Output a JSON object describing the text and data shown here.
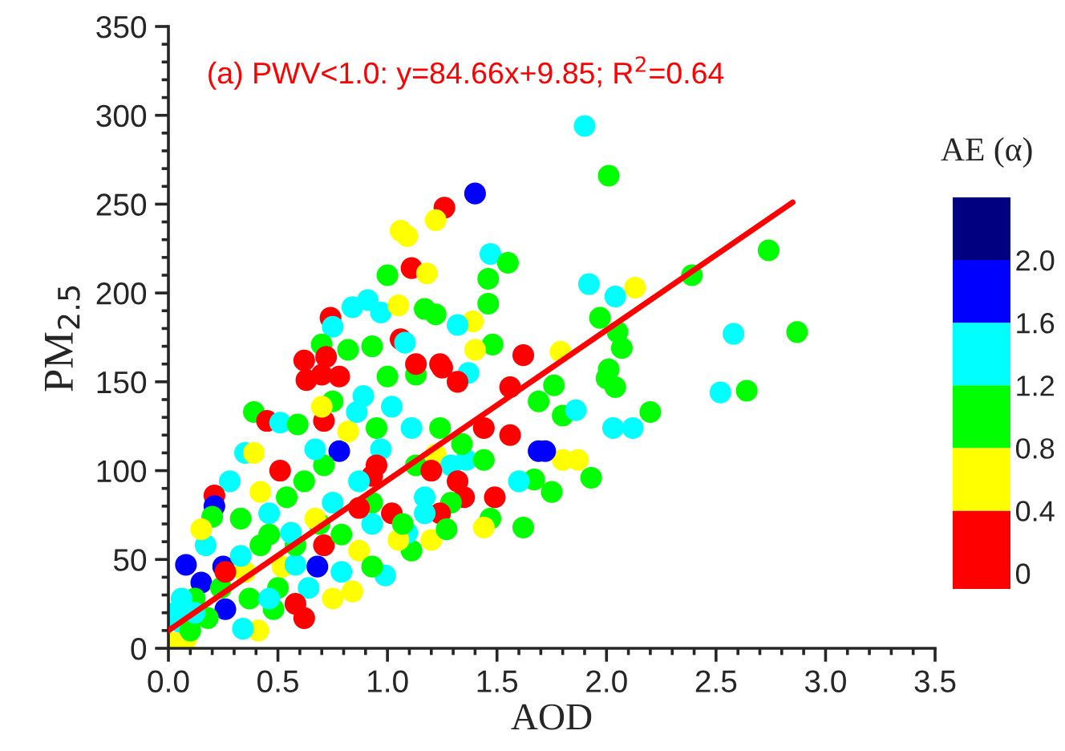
{
  "chart_data": {
    "type": "scatter",
    "xlabel": "AOD",
    "ylabel": "PM$_{2.5}$",
    "clabel": "AE (α)",
    "annotations": [
      "(a) PWV<1.0: y=84.66x+9.85; R$^{2}$=0.64"
    ],
    "xlim": [
      0,
      3.5
    ],
    "xticks": [
      {
        "value": 0,
        "label": "0.0"
      },
      {
        "value": 0.5,
        "label": "0.5"
      },
      {
        "value": 1,
        "label": "1.0"
      },
      {
        "value": 1.5,
        "label": "1.5"
      },
      {
        "value": 2,
        "label": "2.0"
      },
      {
        "value": 2.5,
        "label": "2.5"
      },
      {
        "value": 3,
        "label": "3.0"
      },
      {
        "value": 3.5,
        "label": "3.5"
      }
    ],
    "ylim": [
      0,
      350
    ],
    "yticks": [
      0,
      50,
      100,
      150,
      200,
      250,
      300,
      350
    ],
    "clim": [
      -0.1,
      2.4
    ],
    "cticks": [
      0,
      0.4,
      0.8,
      {
        "value": 1.2,
        "label": "1.2"
      },
      1.6,
      {
        "value": 2.0,
        "label": "2.0"
      }
    ],
    "colors": [
      "#ff0000",
      "#ffff00",
      "#00ff00",
      "#00ffff",
      "#0000ff",
      "#000080"
    ],
    "marker": "circle",
    "grid": false,
    "legend": false,
    "series": [
      {
        "type": "scatter",
        "x": [
          1.9,
          2.01,
          2.74,
          2.39,
          1.92,
          2.13,
          2.04,
          1.97,
          2.05,
          2.07,
          2.58,
          2.87,
          2.01,
          2.0,
          2.04,
          2.52,
          2.64,
          2.2,
          2.03,
          2.12,
          1.79,
          1.76,
          1.8,
          1.86,
          1.8,
          1.87,
          1.93,
          1.75,
          1.72,
          1.4,
          1.26,
          1.22,
          1.06,
          1.09,
          1.47,
          1.55,
          1.11,
          1.18,
          1.0,
          1.46,
          0.91,
          0.84,
          0.97,
          1.05,
          1.46,
          0.74,
          1.17,
          1.22,
          0.75,
          1.39,
          1.32,
          1.06,
          1.08,
          0.93,
          1.48,
          1.62,
          0.7,
          0.62,
          0.72,
          0.82,
          1.24,
          1.4,
          0.63,
          0.7,
          0.78,
          1.13,
          1.13,
          1.25,
          1.37,
          1.32,
          1.0,
          0.89,
          0.39,
          0.45,
          0.51,
          0.59,
          0.35,
          0.39,
          1.56,
          1.69,
          1.44,
          1.56,
          1.69,
          1.67,
          1.6,
          1.62,
          1.47,
          1.44,
          1.35,
          1.49,
          1.29,
          1.17,
          1.2,
          1.11,
          0.99,
          1.09,
          0.84,
          0.62,
          0.75,
          0.64,
          0.48,
          0.68,
          0.25,
          0.08,
          0.15,
          0.26,
          0.08,
          0.41,
          0.34,
          0.18,
          0.03,
          0.5,
          0.52,
          0.58,
          0.42,
          0.42,
          0.28,
          0.21,
          0.21,
          0.2,
          0.17,
          0.15,
          0.33,
          0.46,
          0.54,
          0.78,
          0.71,
          0.67,
          0.71,
          0.82,
          0.86,
          0.75,
          0.7,
          1.02,
          0.95,
          1.11,
          1.24,
          0.97,
          0.93,
          0.95,
          0.87,
          0.93,
          0.87,
          0.93,
          0.79,
          0.58,
          0.56,
          0.46,
          0.35,
          0.33,
          0.24,
          0.26,
          0.12,
          0.06,
          0.37,
          0.46,
          0.58,
          0.69,
          0.71,
          0.75,
          0.67,
          0.62,
          0.51,
          1.13,
          1.22,
          1.29,
          1.2,
          1.36,
          1.34,
          1.32,
          1.05,
          1.24,
          1.27,
          1.17,
          1.44,
          0.93,
          0.87,
          1.02,
          1.07,
          0.79,
          0.05,
          0.1,
          0.02,
          0.12
        ],
        "values": [
          294,
          266,
          224,
          210,
          205,
          203,
          198,
          186,
          178,
          169,
          177,
          178,
          157,
          152,
          147,
          144,
          145,
          133,
          124,
          124,
          167,
          148,
          131,
          134,
          106,
          106,
          96,
          88,
          111,
          256,
          248,
          241,
          235,
          232,
          222,
          217,
          214,
          211,
          210,
          208,
          196,
          192,
          189,
          193,
          194,
          186,
          191,
          188,
          181,
          184,
          182,
          174,
          172,
          170,
          171,
          165,
          171,
          162,
          164,
          168,
          160,
          168,
          151,
          154,
          153,
          154,
          160,
          158,
          155,
          150,
          153,
          142,
          133,
          128,
          127,
          126,
          110,
          110,
          147,
          139,
          124,
          120,
          111,
          95,
          94,
          68,
          73,
          68,
          85,
          85,
          82,
          85,
          61,
          55,
          41,
          65,
          32,
          17,
          28,
          34,
          22,
          46,
          46,
          47,
          37,
          22,
          5,
          10,
          11,
          17,
          20,
          34,
          46,
          47,
          58,
          88,
          94,
          86,
          80,
          74,
          58,
          67,
          73,
          76,
          85,
          111,
          103,
          112,
          128,
          122,
          133,
          139,
          136,
          136,
          124,
          124,
          124,
          112,
          97,
          103,
          94,
          82,
          55,
          46,
          43,
          58,
          65,
          64,
          43,
          52,
          34,
          43,
          28,
          28,
          28,
          28,
          25,
          70,
          58,
          82,
          73,
          94,
          100,
          103,
          109,
          103,
          100,
          106,
          115,
          94,
          61,
          76,
          67,
          76,
          106,
          70,
          79,
          76,
          70,
          64,
          15,
          10,
          3,
          20
        ],
        "colors": [
          "#00ffff",
          "#00ff00",
          "#00ff00",
          "#00ff00",
          "#00ffff",
          "#ffff00",
          "#00ffff",
          "#00ff00",
          "#00ff00",
          "#00ff00",
          "#00ffff",
          "#00ff00",
          "#00ff00",
          "#00ff00",
          "#00ff00",
          "#00ffff",
          "#00ff00",
          "#00ff00",
          "#00ffff",
          "#00ffff",
          "#ffff00",
          "#00ff00",
          "#00ff00",
          "#00ffff",
          "#ffff00",
          "#ffff00",
          "#00ff00",
          "#00ff00",
          "#0000ff",
          "#0000ff",
          "#ff0000",
          "#ffff00",
          "#ffff00",
          "#ffff00",
          "#00ffff",
          "#00ff00",
          "#ff0000",
          "#ffff00",
          "#00ff00",
          "#00ff00",
          "#00ffff",
          "#00ffff",
          "#00ffff",
          "#ffff00",
          "#00ff00",
          "#ff0000",
          "#00ff00",
          "#00ff00",
          "#00ffff",
          "#ffff00",
          "#00ffff",
          "#ff0000",
          "#00ffff",
          "#00ff00",
          "#00ff00",
          "#ff0000",
          "#00ff00",
          "#ff0000",
          "#ff0000",
          "#00ff00",
          "#ff0000",
          "#ffff00",
          "#ff0000",
          "#ff0000",
          "#ff0000",
          "#00ff00",
          "#ff0000",
          "#ff0000",
          "#00ffff",
          "#ff0000",
          "#00ff00",
          "#00ffff",
          "#00ff00",
          "#ff0000",
          "#00ffff",
          "#00ff00",
          "#00ffff",
          "#ffff00",
          "#ff0000",
          "#00ff00",
          "#ff0000",
          "#ff0000",
          "#0000ff",
          "#00ff00",
          "#00ffff",
          "#00ff00",
          "#00ff00",
          "#ffff00",
          "#ff0000",
          "#ff0000",
          "#00ff00",
          "#00ffff",
          "#ffff00",
          "#00ff00",
          "#00ffff",
          "#00ffff",
          "#ffff00",
          "#ff0000",
          "#ffff00",
          "#00ffff",
          "#00ff00",
          "#0000ff",
          "#0000ff",
          "#0000ff",
          "#0000ff",
          "#0000ff",
          "#ffff00",
          "#ffff00",
          "#00ffff",
          "#00ff00",
          "#00ffff",
          "#00ff00",
          "#ffff00",
          "#00ffff",
          "#00ff00",
          "#ffff00",
          "#00ffff",
          "#ff0000",
          "#0000ff",
          "#00ff00",
          "#00ffff",
          "#ffff00",
          "#00ff00",
          "#00ffff",
          "#00ff00",
          "#0000ff",
          "#00ff00",
          "#00ffff",
          "#ff0000",
          "#ffff00",
          "#00ffff",
          "#00ff00",
          "#ffff00",
          "#00ffff",
          "#00ff00",
          "#00ffff",
          "#00ff00",
          "#00ffff",
          "#ff0000",
          "#ff0000",
          "#00ffff",
          "#00ff00",
          "#ffff00",
          "#00ff00",
          "#00ffff",
          "#00ff00",
          "#00ffff",
          "#00ff00",
          "#ffff00",
          "#00ffff",
          "#00ff00",
          "#ff0000",
          "#00ff00",
          "#00ffff",
          "#00ff00",
          "#00ffff",
          "#ff0000",
          "#00ff00",
          "#ff0000",
          "#00ffff",
          "#ffff00",
          "#00ff00",
          "#ff0000",
          "#00ff00",
          "#ffff00",
          "#00ffff",
          "#ff0000",
          "#00ffff",
          "#00ff00",
          "#ff0000",
          "#ffff00",
          "#ff0000",
          "#00ff00",
          "#00ffff",
          "#00ff00",
          "#00ffff",
          "#ff0000",
          "#ff0000",
          "#00ff00",
          "#00ff00",
          "#00ffff",
          "#00ff00",
          "#ffff00",
          "#00ffff"
        ]
      },
      {
        "type": "line",
        "color": "#ff0000",
        "x": [
          0.0,
          2.85
        ],
        "values": [
          10,
          251
        ],
        "marker": "none"
      }
    ]
  }
}
